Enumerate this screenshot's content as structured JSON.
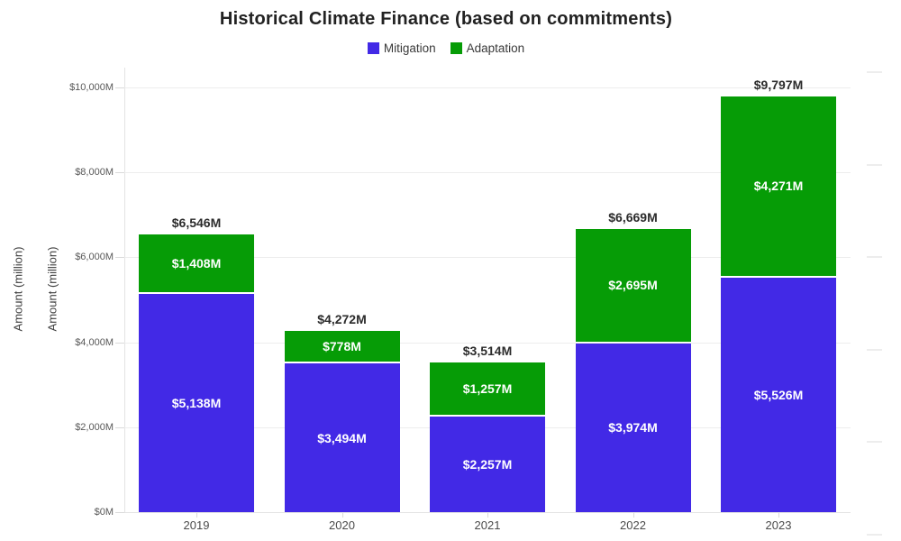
{
  "title": "Historical Climate Finance (based on commitments)",
  "legend": {
    "items": [
      {
        "label": "Mitigation",
        "color": "#4229e6"
      },
      {
        "label": "Adaptation",
        "color": "#069c06"
      }
    ]
  },
  "y_axis_titles": [
    "Amount (million)",
    "Amount (million)"
  ],
  "chart_data": {
    "type": "bar",
    "stacked": true,
    "title": "Historical Climate Finance (based on commitments)",
    "ylabel": "Amount (million)",
    "xlabel": "",
    "categories": [
      "2019",
      "2020",
      "2021",
      "2022",
      "2023"
    ],
    "series": [
      {
        "name": "Mitigation",
        "color": "#4229e6",
        "values": [
          5138,
          3494,
          2257,
          3974,
          5526
        ],
        "data_labels": [
          "$5,138M",
          "$3,494M",
          "$2,257M",
          "$3,974M",
          "$5,526M"
        ]
      },
      {
        "name": "Adaptation",
        "color": "#069c06",
        "values": [
          1408,
          778,
          1257,
          2695,
          4271
        ],
        "data_labels": [
          "$1,408M",
          "$778M",
          "$1,257M",
          "$2,695M",
          "$4,271M"
        ]
      }
    ],
    "totals": [
      6546,
      4272,
      3514,
      6669,
      9797
    ],
    "total_labels": [
      "$6,546M",
      "$4,272M",
      "$3,514M",
      "$6,669M",
      "$9,797M"
    ],
    "ylim": [
      0,
      10000
    ],
    "yticks": [
      0,
      2000,
      4000,
      6000,
      8000,
      10000
    ],
    "ytick_labels": [
      "$0M",
      "$2,000M",
      "$4,000M",
      "$6,000M",
      "$8,000M",
      "$10,000M"
    ],
    "grid": true,
    "legend_position": "top"
  }
}
